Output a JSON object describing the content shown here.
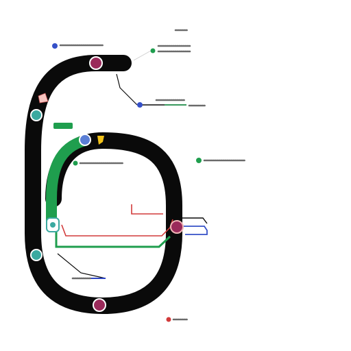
{
  "colors": {
    "track": "#0a0a0a",
    "green": "#1f9e4e",
    "blue": "#3550c8",
    "red": "#d23a3a",
    "navy": "#2b44c4",
    "node_stroke": "#ffffff",
    "node_purple": "#9a2a5a",
    "node_teal": "#3aa9a0",
    "flag": "#f2c21a"
  },
  "labels": {
    "top_right_small": "",
    "callout_top": "",
    "callout_mid_right": "",
    "callout_right": "",
    "callout_center": "",
    "callout_bottom_left": "",
    "callout_bottom": ""
  },
  "icons": {
    "station": "station-node-icon",
    "flag": "flag-icon",
    "pin": "pin-dot-icon"
  }
}
